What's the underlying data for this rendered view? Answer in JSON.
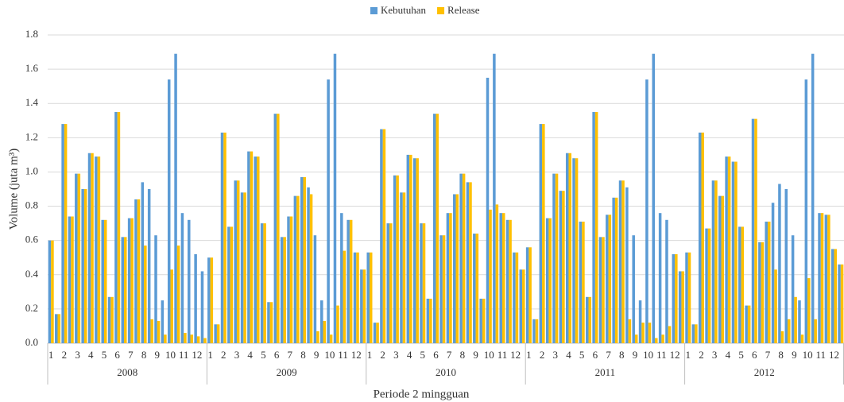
{
  "chart_data": {
    "type": "bar",
    "x_label": "Periode 2 mingguan",
    "y_label": "Volume (juta m³)",
    "groups": [
      "2008",
      "2009",
      "2010",
      "2011",
      "2012"
    ],
    "categories": [
      "1",
      null,
      "2",
      null,
      "3",
      null,
      "4",
      null,
      "5",
      null,
      "6",
      null,
      "7",
      null,
      "8",
      null,
      "9",
      null,
      "10",
      null,
      "11",
      null,
      "12",
      null,
      "1",
      null,
      "2",
      null,
      "3",
      null,
      "4",
      null,
      "5",
      null,
      "6",
      null,
      "7",
      null,
      "8",
      null,
      "9",
      null,
      "10",
      null,
      "11",
      null,
      "12",
      null,
      "1",
      null,
      "2",
      null,
      "3",
      null,
      "4",
      null,
      "5",
      null,
      "6",
      null,
      "7",
      null,
      "8",
      null,
      "9",
      null,
      "10",
      null,
      "11",
      null,
      "12",
      null,
      "1",
      null,
      "2",
      null,
      "3",
      null,
      "4",
      null,
      "5",
      null,
      "6",
      null,
      "7",
      null,
      "8",
      null,
      "9",
      null,
      "10",
      null,
      "11",
      null,
      "12",
      null,
      "1",
      null,
      "2",
      null,
      "3",
      null,
      "4",
      null,
      "5",
      null,
      "6",
      null,
      "7",
      null,
      "8",
      null,
      "9",
      null,
      "10",
      null,
      "11",
      null,
      "12",
      null
    ],
    "series": [
      {
        "name": "Kebutuhan",
        "color": "#5b9bd5",
        "values": [
          0.6,
          0.17,
          1.28,
          0.74,
          0.99,
          0.9,
          1.11,
          1.09,
          0.72,
          0.27,
          1.35,
          0.62,
          0.73,
          0.84,
          0.94,
          0.9,
          0.63,
          0.25,
          1.54,
          1.69,
          0.76,
          0.72,
          0.52,
          0.42,
          0.5,
          0.11,
          1.23,
          0.68,
          0.95,
          0.88,
          1.12,
          1.09,
          0.7,
          0.24,
          1.34,
          0.62,
          0.74,
          0.86,
          0.97,
          0.91,
          0.63,
          0.25,
          1.54,
          1.69,
          0.76,
          0.72,
          0.53,
          0.43,
          0.53,
          0.12,
          1.25,
          0.7,
          0.98,
          0.88,
          1.1,
          1.08,
          0.7,
          0.26,
          1.34,
          0.63,
          0.76,
          0.87,
          0.99,
          0.94,
          0.64,
          0.26,
          1.55,
          1.69,
          0.76,
          0.72,
          0.53,
          0.43,
          0.56,
          0.14,
          1.28,
          0.73,
          0.99,
          0.89,
          1.11,
          1.08,
          0.71,
          0.27,
          1.35,
          0.62,
          0.75,
          0.85,
          0.95,
          0.91,
          0.63,
          0.25,
          1.54,
          1.69,
          0.76,
          0.72,
          0.52,
          0.42,
          0.53,
          0.11,
          1.23,
          0.67,
          0.95,
          0.86,
          1.09,
          1.06,
          0.68,
          0.22,
          1.31,
          0.59,
          0.71,
          0.82,
          0.93,
          0.9,
          0.63,
          0.25,
          1.54,
          1.69,
          0.76,
          0.75,
          0.55,
          0.46
        ]
      },
      {
        "name": "Release",
        "color": "#ffc000",
        "values": [
          0.6,
          0.17,
          1.28,
          0.74,
          0.99,
          0.9,
          1.11,
          1.09,
          0.72,
          0.27,
          1.35,
          0.62,
          0.73,
          0.84,
          0.57,
          0.14,
          0.13,
          0.05,
          0.43,
          0.57,
          0.06,
          0.05,
          0.04,
          0.03,
          0.5,
          0.11,
          1.23,
          0.68,
          0.95,
          0.88,
          1.12,
          1.09,
          0.7,
          0.24,
          1.34,
          0.62,
          0.74,
          0.86,
          0.97,
          0.87,
          0.07,
          0.13,
          0.05,
          0.22,
          0.54,
          0.72,
          0.53,
          0.43,
          0.53,
          0.12,
          1.25,
          0.7,
          0.98,
          0.88,
          1.1,
          1.08,
          0.7,
          0.26,
          1.34,
          0.63,
          0.76,
          0.87,
          0.99,
          0.94,
          0.64,
          0.26,
          0.78,
          0.81,
          0.76,
          0.72,
          0.53,
          0.43,
          0.56,
          0.14,
          1.28,
          0.73,
          0.99,
          0.89,
          1.11,
          1.08,
          0.71,
          0.27,
          1.35,
          0.62,
          0.75,
          0.85,
          0.95,
          0.14,
          0.05,
          0.12,
          0.12,
          0.03,
          0.05,
          0.1,
          0.52,
          0.42,
          0.53,
          0.11,
          1.23,
          0.67,
          0.95,
          0.86,
          1.09,
          1.06,
          0.68,
          0.22,
          1.31,
          0.59,
          0.71,
          0.43,
          0.07,
          0.14,
          0.27,
          0.05,
          0.38,
          0.14,
          0.76,
          0.75,
          0.55,
          0.46
        ]
      }
    ],
    "ylim": [
      0,
      1.8
    ],
    "yticks": [
      {
        "value": 0,
        "label": "0.0"
      },
      0.2,
      0.4,
      0.6,
      0.8,
      {
        "value": 1,
        "label": "1.0"
      },
      1.2,
      1.4,
      1.6,
      1.8
    ],
    "grid": true,
    "legend": "top"
  }
}
